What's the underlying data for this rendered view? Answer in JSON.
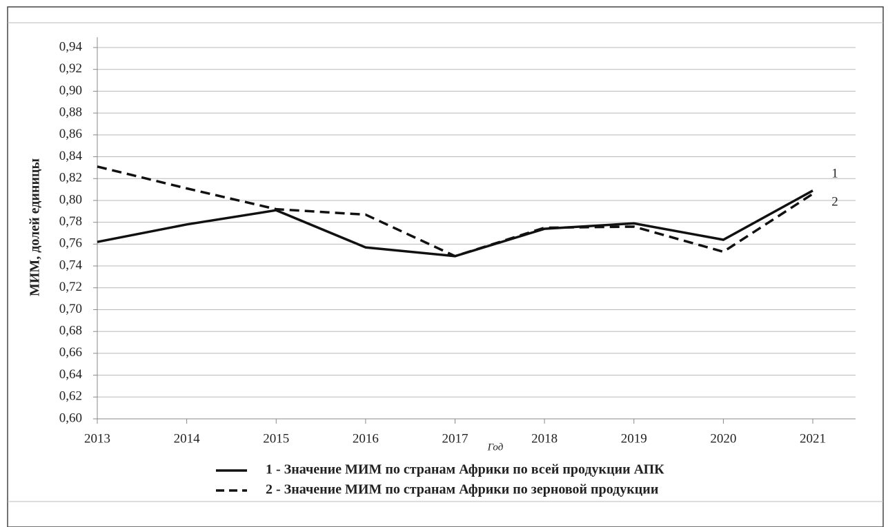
{
  "chart_data": {
    "type": "line",
    "y_label": "МИМ, долей единицы",
    "x_label": "Год",
    "categories": [
      "2013",
      "2014",
      "2015",
      "2016",
      "2017",
      "2018",
      "2019",
      "2020",
      "2021"
    ],
    "series": [
      {
        "name": "1 - Значение МИМ по странам Африки по всей продукции АПК",
        "color": "#111111",
        "line_style": "solid",
        "values": [
          0.762,
          0.778,
          0.791,
          0.757,
          0.749,
          0.774,
          0.779,
          0.764,
          0.809
        ]
      },
      {
        "name": "2 - Значение МИМ по странам Африки по зерновой продукции",
        "color": "#111111",
        "line_style": "dashed",
        "values": [
          0.831,
          0.811,
          0.792,
          0.787,
          0.749,
          0.775,
          0.776,
          0.753,
          0.806
        ]
      }
    ],
    "annotations": [
      "1",
      "2"
    ],
    "ylim": [
      0.6,
      0.94
    ],
    "yticks": [
      {
        "value": 0.6,
        "label": "0,60"
      },
      {
        "value": 0.62,
        "label": "0,62"
      },
      {
        "value": 0.64,
        "label": "0,64"
      },
      {
        "value": 0.66,
        "label": "0,66"
      },
      {
        "value": 0.68,
        "label": "0,68"
      },
      {
        "value": 0.7,
        "label": "0,70"
      },
      {
        "value": 0.72,
        "label": "0,72"
      },
      {
        "value": 0.74,
        "label": "0,74"
      },
      {
        "value": 0.76,
        "label": "0,76"
      },
      {
        "value": 0.78,
        "label": "0,78"
      },
      {
        "value": 0.8,
        "label": "0,80"
      },
      {
        "value": 0.82,
        "label": "0,82"
      },
      {
        "value": 0.84,
        "label": "0,84"
      },
      {
        "value": 0.86,
        "label": "0,86"
      },
      {
        "value": 0.88,
        "label": "0,88"
      },
      {
        "value": 0.9,
        "label": "0,90"
      },
      {
        "value": 0.92,
        "label": "0,92"
      },
      {
        "value": 0.94,
        "label": "0,94"
      }
    ],
    "grid": true
  }
}
